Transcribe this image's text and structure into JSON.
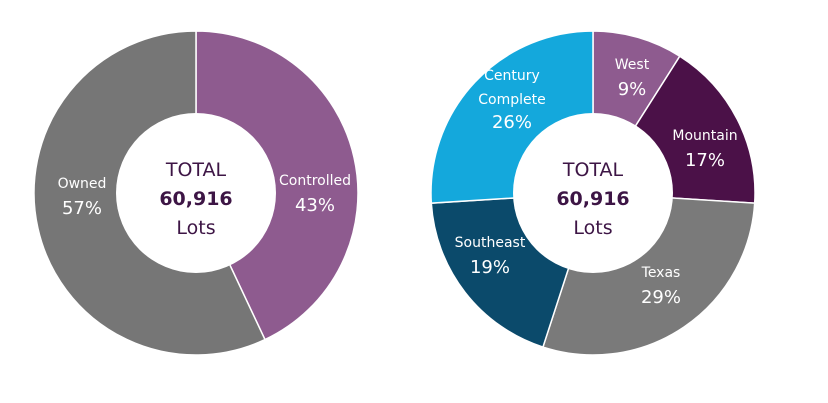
{
  "chart_data": [
    {
      "type": "pie",
      "center": {
        "line1": "TOTAL",
        "line2": "60,916",
        "line3": "Lots"
      },
      "slices": [
        {
          "label": "Controlled",
          "value": 43,
          "pct_text": "43%",
          "color": "#8e5b8f"
        },
        {
          "label": "Owned",
          "value": 57,
          "pct_text": "57%",
          "color": "#767676"
        }
      ]
    },
    {
      "type": "pie",
      "center": {
        "line1": "TOTAL",
        "line2": "60,916",
        "line3": "Lots"
      },
      "slices": [
        {
          "label": "West",
          "value": 9,
          "pct_text": "9%",
          "color": "#8e5b8f"
        },
        {
          "label": "Mountain",
          "value": 17,
          "pct_text": "17%",
          "color": "#4b1148"
        },
        {
          "label": "Texas",
          "value": 29,
          "pct_text": "29%",
          "color": "#7a7a7a"
        },
        {
          "label": "Southeast",
          "value": 19,
          "pct_text": "19%",
          "color": "#0b4a6b"
        },
        {
          "label": "Century\nComplete",
          "value": 26,
          "pct_text": "26%",
          "color": "#14a8dc"
        }
      ]
    }
  ]
}
